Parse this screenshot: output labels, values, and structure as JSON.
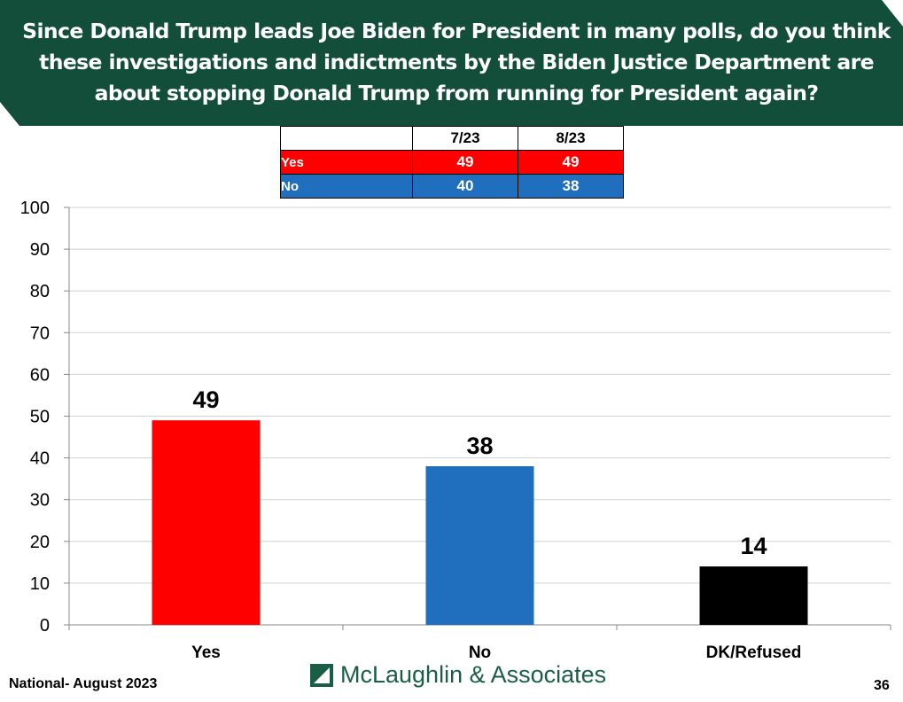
{
  "header": {
    "title": "Since Donald Trump leads Joe Biden for President in many polls, do you think these investigations and indictments by the Biden Justice Department are about stopping Donald Trump from running for President again?",
    "bg": "#134e3b"
  },
  "trend_table": {
    "columns": [
      "",
      "7/23",
      "8/23"
    ],
    "rows": [
      {
        "label": "Yes",
        "values": [
          "49",
          "49"
        ]
      },
      {
        "label": "No",
        "values": [
          "40",
          "38"
        ]
      }
    ]
  },
  "chart_data": {
    "type": "bar",
    "title": "",
    "categories": [
      "Yes",
      "No",
      "DK/Refused"
    ],
    "values": [
      49,
      38,
      14
    ],
    "colors": [
      "#ff0000",
      "#1f6fbe",
      "#000000"
    ],
    "ylim": [
      0,
      100
    ],
    "yticks": [
      0,
      10,
      20,
      30,
      40,
      50,
      60,
      70,
      80,
      90,
      100
    ],
    "grid": true,
    "xlabel": "",
    "ylabel": ""
  },
  "footer": {
    "left": "National- August 2023",
    "logo": "McLaughlin & Associates",
    "page": "36"
  }
}
